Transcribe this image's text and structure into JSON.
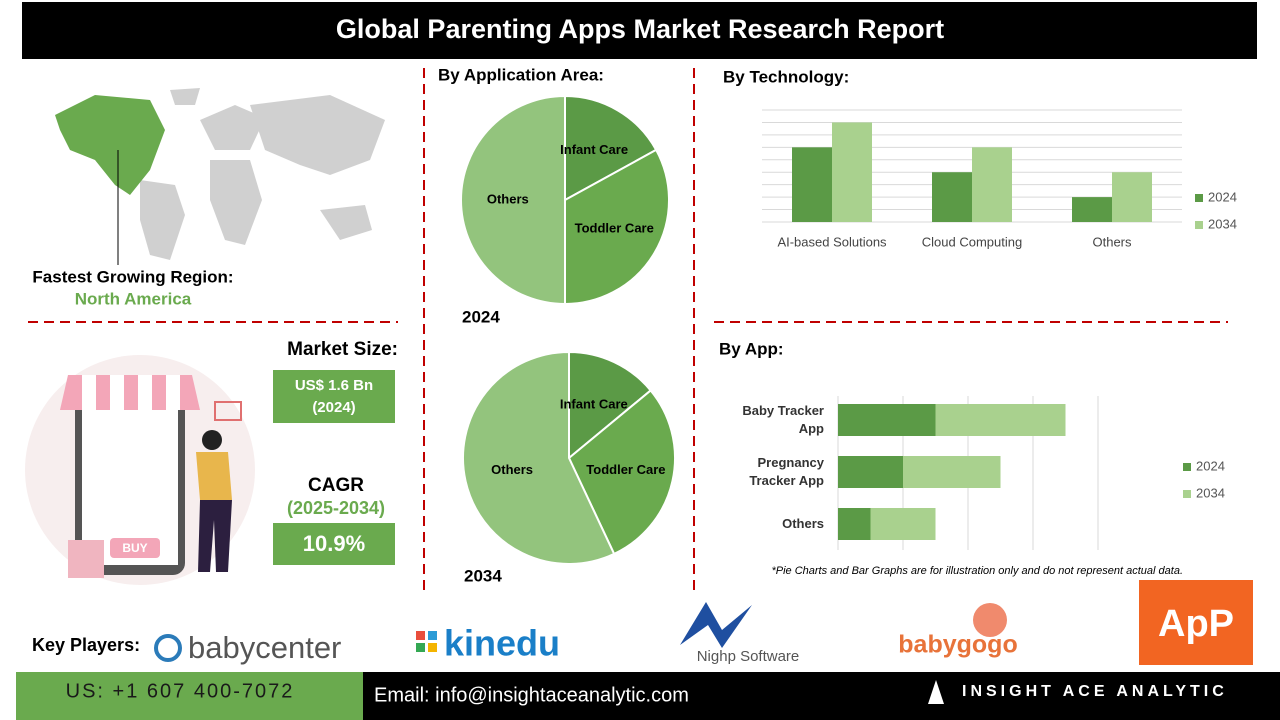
{
  "header": {
    "title": "Global Parenting Apps Market Research Report"
  },
  "region": {
    "label": "Fastest Growing Region:",
    "value": "North America"
  },
  "market": {
    "size_label": "Market Size:",
    "size": "US$ 1.6 Bn",
    "size_year": "(2024)",
    "cagr_label": "CAGR",
    "cagr_period": "(2025-2034)",
    "cagr": "10.9%"
  },
  "illustration": {
    "button": "BUY"
  },
  "chart_data": [
    {
      "type": "pie",
      "title": "By Application Area:",
      "subtitle": "2024",
      "categories": [
        "Infant Care",
        "Toddler Care",
        "Others"
      ],
      "values": [
        17,
        33,
        50
      ],
      "colors": [
        "#5b9a46",
        "#6aaa4e",
        "#93c47d"
      ]
    },
    {
      "type": "pie",
      "subtitle": "2034",
      "categories": [
        "Infant Care",
        "Toddler Care",
        "Others"
      ],
      "values": [
        14,
        29,
        57
      ],
      "colors": [
        "#5b9a46",
        "#6aaa4e",
        "#93c47d"
      ]
    },
    {
      "type": "bar",
      "title": "By  Technology:",
      "categories": [
        "AI-based Solutions",
        "Cloud Computing",
        "Others"
      ],
      "series": [
        {
          "name": "2024",
          "color": "#5b9a46",
          "values": [
            6,
            4,
            2
          ]
        },
        {
          "name": "2034",
          "color": "#a9d18e",
          "values": [
            8,
            6,
            4
          ]
        }
      ],
      "ylim": [
        0,
        9
      ],
      "yticks": [
        0,
        1,
        2,
        3,
        4,
        5,
        6,
        7,
        8,
        9
      ],
      "grid": true,
      "legend": "right"
    },
    {
      "type": "barh",
      "stacked": true,
      "title": "By App:",
      "categories": [
        "Baby Tracker App",
        "Pregnancy Tracker App",
        "Others"
      ],
      "series": [
        {
          "name": "2024",
          "color": "#5b9a46",
          "values": [
            1.5,
            1,
            0.5
          ]
        },
        {
          "name": "2034",
          "color": "#a9d18e",
          "values": [
            2,
            1.5,
            1
          ]
        }
      ],
      "xlim": [
        0,
        4
      ],
      "xticks": [
        0,
        1,
        2,
        3,
        4
      ],
      "grid": true,
      "legend": "right"
    }
  ],
  "note": "*Pie Charts and Bar Graphs are for illustration only and do not represent actual data.",
  "key_players": {
    "label": "Key Players:",
    "names": [
      "babycenter",
      "kinedu",
      "Nighp Software",
      "babygogo",
      "ApP"
    ]
  },
  "footer": {
    "phone": "US: +1 607 400-7072",
    "email": "Email: info@insightaceanalytic.com",
    "brand": "INSIGHT ACE ANALYTIC"
  }
}
